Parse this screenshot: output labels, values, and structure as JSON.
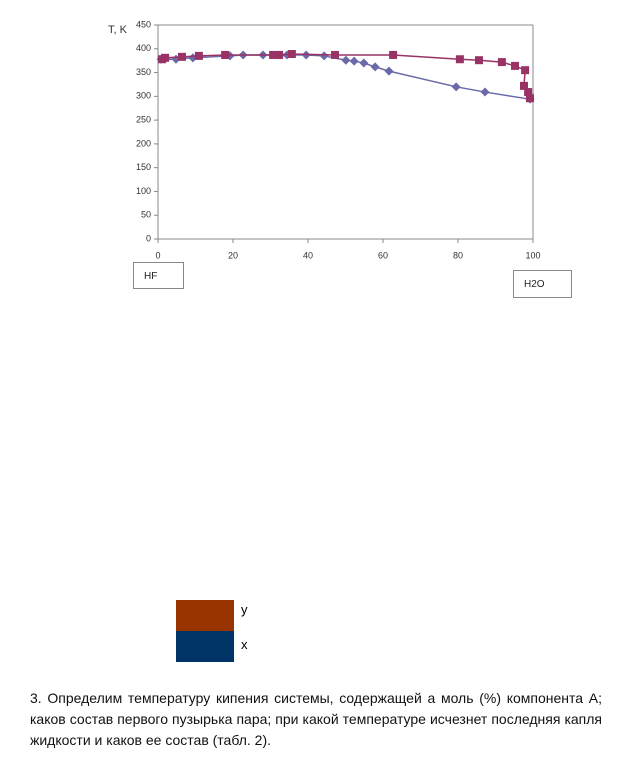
{
  "chart_data": {
    "type": "line",
    "y_label": "T, K",
    "xlim": [
      0,
      100
    ],
    "xticks": [
      0,
      20,
      40,
      60,
      80,
      100
    ],
    "ylim": [
      0,
      450
    ],
    "yticks": [
      0,
      50,
      100,
      150,
      200,
      250,
      300,
      350,
      400,
      450
    ],
    "grid": false,
    "series": [
      {
        "marker": "diamond",
        "color": "#6a6aa8",
        "x": [
          0.8,
          4.8,
          9.3,
          19.2,
          22.7,
          28,
          32.5,
          34.4,
          39.5,
          44.3,
          50.1,
          52.3,
          54.9,
          57.9,
          61.6,
          79.5,
          87.2,
          99.2
        ],
        "values": [
          378,
          378,
          381,
          385,
          387,
          387,
          387,
          387,
          387,
          385,
          376,
          374,
          370,
          362,
          353,
          320,
          309,
          294
        ]
      },
      {
        "marker": "square",
        "color": "#993366",
        "x": [
          1.1,
          1.9,
          6.4,
          10.9,
          17.9,
          30.7,
          32.3,
          35.7,
          47.2,
          62.7,
          80.5,
          85.6,
          91.7,
          95.2,
          97.9,
          97.6,
          98.7,
          99.2
        ],
        "values": [
          378,
          381,
          383,
          385,
          387,
          387,
          387,
          389,
          387,
          387,
          378,
          376,
          372,
          364,
          355,
          322,
          309,
          296
        ]
      }
    ]
  },
  "axis_boxes": {
    "left": "HF",
    "right": "H2O"
  },
  "legend": [
    {
      "label": "y",
      "color": "#993300"
    },
    {
      "label": "x",
      "color": "#003366"
    }
  ],
  "paragraph": "3. Определим температуру кипения системы, содержащей а моль (%) компонента А; каков состав первого пузырька пара; при какой температуре исчезнет последняя капля жидкости и каков ее состав (табл. 2)."
}
